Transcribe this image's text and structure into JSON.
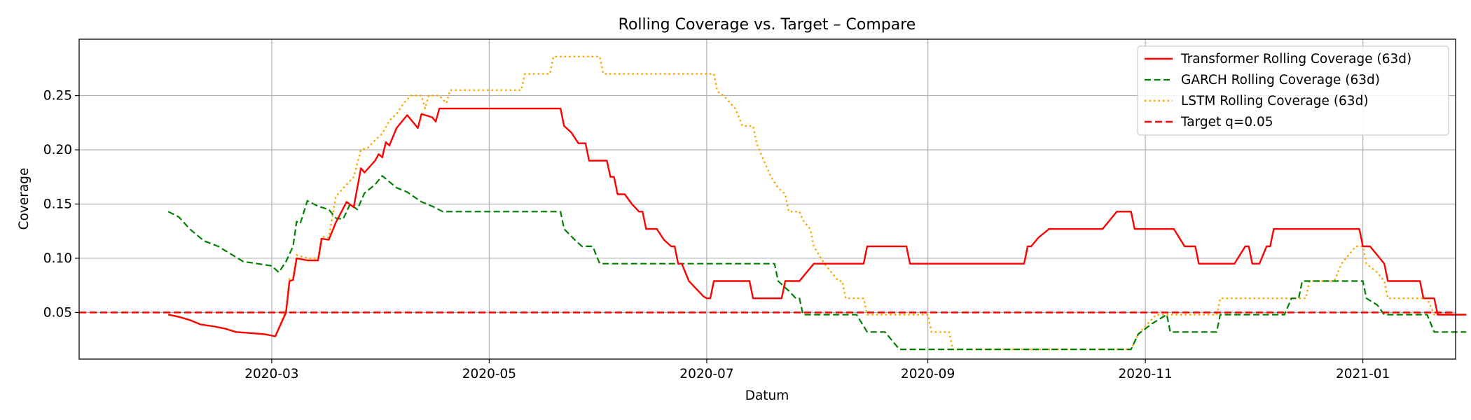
{
  "chart_data": {
    "type": "line",
    "title": "Rolling Coverage vs. Target – Compare",
    "xlabel": "Datum",
    "ylabel": "Coverage",
    "x_axis_type": "date",
    "xlim": [
      "2020-01-07",
      "2021-01-27"
    ],
    "ylim": [
      0.007,
      0.302
    ],
    "grid": true,
    "legend_position": "top-right",
    "x_ticks": [
      {
        "date": "2020-03-01",
        "label": "2020-03"
      },
      {
        "date": "2020-05-01",
        "label": "2020-05"
      },
      {
        "date": "2020-07-01",
        "label": "2020-07"
      },
      {
        "date": "2020-09-01",
        "label": "2020-09"
      },
      {
        "date": "2020-11-01",
        "label": "2020-11"
      },
      {
        "date": "2021-01-01",
        "label": "2021-01"
      }
    ],
    "y_ticks": [
      0.05,
      0.1,
      0.15,
      0.2,
      0.25
    ],
    "y_tick_labels": [
      "0.05",
      "0.10",
      "0.15",
      "0.20",
      "0.25"
    ],
    "series": [
      {
        "name": "Transformer Rolling Coverage (63d)",
        "color": "#ff0000",
        "style": "solid",
        "points": [
          [
            "2020-02-01",
            0.048
          ],
          [
            "2020-02-04",
            0.046
          ],
          [
            "2020-02-07",
            0.043
          ],
          [
            "2020-02-10",
            0.039
          ],
          [
            "2020-02-14",
            0.037
          ],
          [
            "2020-02-17",
            0.035
          ],
          [
            "2020-02-20",
            0.032
          ],
          [
            "2020-02-24",
            0.031
          ],
          [
            "2020-02-28",
            0.03
          ],
          [
            "2020-03-02",
            0.028
          ],
          [
            "2020-03-05",
            0.05
          ],
          [
            "2020-03-06",
            0.079
          ],
          [
            "2020-03-07",
            0.08
          ],
          [
            "2020-03-08",
            0.1
          ],
          [
            "2020-03-11",
            0.098
          ],
          [
            "2020-03-14",
            0.098
          ],
          [
            "2020-03-15",
            0.118
          ],
          [
            "2020-03-17",
            0.117
          ],
          [
            "2020-03-19",
            0.133
          ],
          [
            "2020-03-22",
            0.152
          ],
          [
            "2020-03-24",
            0.147
          ],
          [
            "2020-03-26",
            0.183
          ],
          [
            "2020-03-27",
            0.179
          ],
          [
            "2020-03-30",
            0.19
          ],
          [
            "2020-03-31",
            0.196
          ],
          [
            "2020-04-01",
            0.193
          ],
          [
            "2020-04-02",
            0.207
          ],
          [
            "2020-04-03",
            0.204
          ],
          [
            "2020-04-05",
            0.22
          ],
          [
            "2020-04-08",
            0.232
          ],
          [
            "2020-04-11",
            0.22
          ],
          [
            "2020-04-12",
            0.233
          ],
          [
            "2020-04-15",
            0.23
          ],
          [
            "2020-04-16",
            0.226
          ],
          [
            "2020-04-17",
            0.238
          ],
          [
            "2020-05-20",
            0.238
          ],
          [
            "2020-05-21",
            0.238
          ],
          [
            "2020-05-22",
            0.222
          ],
          [
            "2020-05-24",
            0.216
          ],
          [
            "2020-05-26",
            0.206
          ],
          [
            "2020-05-28",
            0.206
          ],
          [
            "2020-05-29",
            0.19
          ],
          [
            "2020-06-01",
            0.19
          ],
          [
            "2020-06-03",
            0.19
          ],
          [
            "2020-06-04",
            0.175
          ],
          [
            "2020-06-05",
            0.175
          ],
          [
            "2020-06-06",
            0.159
          ],
          [
            "2020-06-08",
            0.159
          ],
          [
            "2020-06-10",
            0.15
          ],
          [
            "2020-06-12",
            0.143
          ],
          [
            "2020-06-13",
            0.143
          ],
          [
            "2020-06-14",
            0.127
          ],
          [
            "2020-06-17",
            0.127
          ],
          [
            "2020-06-19",
            0.117
          ],
          [
            "2020-06-21",
            0.111
          ],
          [
            "2020-06-22",
            0.111
          ],
          [
            "2020-06-23",
            0.095
          ],
          [
            "2020-06-24",
            0.095
          ],
          [
            "2020-06-26",
            0.079
          ],
          [
            "2020-06-28",
            0.072
          ],
          [
            "2020-06-30",
            0.065
          ],
          [
            "2020-07-01",
            0.063
          ],
          [
            "2020-07-02",
            0.063
          ],
          [
            "2020-07-03",
            0.079
          ],
          [
            "2020-07-13",
            0.079
          ],
          [
            "2020-07-14",
            0.063
          ],
          [
            "2020-07-22",
            0.063
          ],
          [
            "2020-07-23",
            0.079
          ],
          [
            "2020-07-27",
            0.079
          ],
          [
            "2020-07-29",
            0.087
          ],
          [
            "2020-07-31",
            0.095
          ],
          [
            "2020-08-14",
            0.095
          ],
          [
            "2020-08-15",
            0.111
          ],
          [
            "2020-08-26",
            0.111
          ],
          [
            "2020-08-27",
            0.095
          ],
          [
            "2020-09-28",
            0.095
          ],
          [
            "2020-09-29",
            0.111
          ],
          [
            "2020-09-30",
            0.111
          ],
          [
            "2020-10-02",
            0.119
          ],
          [
            "2020-10-05",
            0.127
          ],
          [
            "2020-10-20",
            0.127
          ],
          [
            "2020-10-22",
            0.135
          ],
          [
            "2020-10-24",
            0.143
          ],
          [
            "2020-10-28",
            0.143
          ],
          [
            "2020-10-29",
            0.127
          ],
          [
            "2020-11-09",
            0.127
          ],
          [
            "2020-11-12",
            0.111
          ],
          [
            "2020-11-15",
            0.111
          ],
          [
            "2020-11-16",
            0.095
          ],
          [
            "2020-11-26",
            0.095
          ],
          [
            "2020-11-29",
            0.111
          ],
          [
            "2020-11-30",
            0.111
          ],
          [
            "2020-12-01",
            0.095
          ],
          [
            "2020-12-03",
            0.095
          ],
          [
            "2020-12-05",
            0.111
          ],
          [
            "2020-12-06",
            0.111
          ],
          [
            "2020-12-07",
            0.127
          ],
          [
            "2020-12-31",
            0.127
          ],
          [
            "2021-01-01",
            0.111
          ],
          [
            "2021-01-03",
            0.111
          ],
          [
            "2021-01-05",
            0.103
          ],
          [
            "2021-01-07",
            0.095
          ],
          [
            "2021-01-08",
            0.079
          ],
          [
            "2021-01-17",
            0.079
          ],
          [
            "2021-01-18",
            0.063
          ],
          [
            "2021-01-21",
            0.063
          ],
          [
            "2021-01-22",
            0.048
          ],
          [
            "2021-01-30",
            0.048
          ]
        ]
      },
      {
        "name": "GARCH Rolling Coverage (63d)",
        "color": "#008000",
        "style": "dashed",
        "points": [
          [
            "2020-02-01",
            0.143
          ],
          [
            "2020-02-04",
            0.138
          ],
          [
            "2020-02-07",
            0.127
          ],
          [
            "2020-02-11",
            0.116
          ],
          [
            "2020-02-15",
            0.111
          ],
          [
            "2020-02-19",
            0.103
          ],
          [
            "2020-02-22",
            0.097
          ],
          [
            "2020-02-26",
            0.095
          ],
          [
            "2020-03-01",
            0.093
          ],
          [
            "2020-03-03",
            0.087
          ],
          [
            "2020-03-05",
            0.097
          ],
          [
            "2020-03-07",
            0.111
          ],
          [
            "2020-03-08",
            0.134
          ],
          [
            "2020-03-09",
            0.132
          ],
          [
            "2020-03-11",
            0.153
          ],
          [
            "2020-03-14",
            0.148
          ],
          [
            "2020-03-17",
            0.145
          ],
          [
            "2020-03-19",
            0.137
          ],
          [
            "2020-03-21",
            0.136
          ],
          [
            "2020-03-23",
            0.15
          ],
          [
            "2020-03-25",
            0.145
          ],
          [
            "2020-03-27",
            0.16
          ],
          [
            "2020-03-30",
            0.168
          ],
          [
            "2020-04-01",
            0.176
          ],
          [
            "2020-04-05",
            0.165
          ],
          [
            "2020-04-08",
            0.161
          ],
          [
            "2020-04-12",
            0.152
          ],
          [
            "2020-04-15",
            0.148
          ],
          [
            "2020-04-18",
            0.143
          ],
          [
            "2020-05-21",
            0.143
          ],
          [
            "2020-05-22",
            0.127
          ],
          [
            "2020-05-25",
            0.117
          ],
          [
            "2020-05-27",
            0.111
          ],
          [
            "2020-05-30",
            0.111
          ],
          [
            "2020-06-01",
            0.095
          ],
          [
            "2020-07-20",
            0.095
          ],
          [
            "2020-07-21",
            0.079
          ],
          [
            "2020-07-24",
            0.07
          ],
          [
            "2020-07-26",
            0.063
          ],
          [
            "2020-07-27",
            0.063
          ],
          [
            "2020-07-28",
            0.048
          ],
          [
            "2020-08-11",
            0.048
          ],
          [
            "2020-08-12",
            0.048
          ],
          [
            "2020-08-15",
            0.032
          ],
          [
            "2020-08-20",
            0.032
          ],
          [
            "2020-08-24",
            0.016
          ],
          [
            "2020-10-28",
            0.016
          ],
          [
            "2020-10-30",
            0.03
          ],
          [
            "2020-11-03",
            0.04
          ],
          [
            "2020-11-07",
            0.048
          ],
          [
            "2020-11-08",
            0.032
          ],
          [
            "2020-11-21",
            0.032
          ],
          [
            "2020-11-22",
            0.048
          ],
          [
            "2020-12-10",
            0.048
          ],
          [
            "2020-12-12",
            0.063
          ],
          [
            "2020-12-14",
            0.063
          ],
          [
            "2020-12-15",
            0.079
          ],
          [
            "2021-01-01",
            0.079
          ],
          [
            "2021-01-02",
            0.063
          ],
          [
            "2021-01-05",
            0.057
          ],
          [
            "2021-01-07",
            0.048
          ],
          [
            "2021-01-19",
            0.048
          ],
          [
            "2021-01-21",
            0.032
          ],
          [
            "2021-01-30",
            0.032
          ]
        ]
      },
      {
        "name": "LSTM Rolling Coverage (63d)",
        "color": "#ffa500",
        "style": "dotted",
        "points": [
          [
            "2020-02-01",
            0.048
          ],
          [
            "2020-02-04",
            0.046
          ],
          [
            "2020-02-07",
            0.043
          ],
          [
            "2020-02-10",
            0.039
          ],
          [
            "2020-02-14",
            0.037
          ],
          [
            "2020-02-17",
            0.035
          ],
          [
            "2020-02-20",
            0.032
          ],
          [
            "2020-02-24",
            0.031
          ],
          [
            "2020-02-28",
            0.03
          ],
          [
            "2020-03-02",
            0.028
          ],
          [
            "2020-03-05",
            0.052
          ],
          [
            "2020-03-06",
            0.081
          ],
          [
            "2020-03-07",
            0.082
          ],
          [
            "2020-03-08",
            0.103
          ],
          [
            "2020-03-11",
            0.1
          ],
          [
            "2020-03-14",
            0.1
          ],
          [
            "2020-03-15",
            0.12
          ],
          [
            "2020-03-17",
            0.119
          ],
          [
            "2020-03-19",
            0.157
          ],
          [
            "2020-03-22",
            0.168
          ],
          [
            "2020-03-24",
            0.175
          ],
          [
            "2020-03-26",
            0.2
          ],
          [
            "2020-03-28",
            0.202
          ],
          [
            "2020-03-30",
            0.209
          ],
          [
            "2020-04-01",
            0.215
          ],
          [
            "2020-04-03",
            0.227
          ],
          [
            "2020-04-05",
            0.233
          ],
          [
            "2020-04-07",
            0.243
          ],
          [
            "2020-04-09",
            0.25
          ],
          [
            "2020-04-12",
            0.25
          ],
          [
            "2020-04-13",
            0.238
          ],
          [
            "2020-04-14",
            0.25
          ],
          [
            "2020-04-17",
            0.25
          ],
          [
            "2020-04-19",
            0.243
          ],
          [
            "2020-04-20",
            0.255
          ],
          [
            "2020-05-10",
            0.255
          ],
          [
            "2020-05-11",
            0.27
          ],
          [
            "2020-05-18",
            0.27
          ],
          [
            "2020-05-19",
            0.286
          ],
          [
            "2020-06-01",
            0.286
          ],
          [
            "2020-06-02",
            0.27
          ],
          [
            "2020-07-03",
            0.27
          ],
          [
            "2020-07-04",
            0.254
          ],
          [
            "2020-07-06",
            0.249
          ],
          [
            "2020-07-09",
            0.238
          ],
          [
            "2020-07-11",
            0.222
          ],
          [
            "2020-07-14",
            0.222
          ],
          [
            "2020-07-15",
            0.206
          ],
          [
            "2020-07-17",
            0.19
          ],
          [
            "2020-07-19",
            0.175
          ],
          [
            "2020-07-21",
            0.165
          ],
          [
            "2020-07-23",
            0.159
          ],
          [
            "2020-07-24",
            0.143
          ],
          [
            "2020-07-27",
            0.143
          ],
          [
            "2020-07-28",
            0.135
          ],
          [
            "2020-07-30",
            0.127
          ],
          [
            "2020-07-31",
            0.111
          ],
          [
            "2020-08-02",
            0.1
          ],
          [
            "2020-08-03",
            0.095
          ],
          [
            "2020-08-05",
            0.087
          ],
          [
            "2020-08-07",
            0.079
          ],
          [
            "2020-08-08",
            0.079
          ],
          [
            "2020-08-09",
            0.063
          ],
          [
            "2020-08-14",
            0.063
          ],
          [
            "2020-08-15",
            0.048
          ],
          [
            "2020-09-01",
            0.048
          ],
          [
            "2020-09-02",
            0.032
          ],
          [
            "2020-09-07",
            0.032
          ],
          [
            "2020-09-08",
            0.016
          ],
          [
            "2020-10-28",
            0.016
          ],
          [
            "2020-10-30",
            0.03
          ],
          [
            "2020-11-04",
            0.048
          ],
          [
            "2020-11-21",
            0.048
          ],
          [
            "2020-11-22",
            0.063
          ],
          [
            "2020-12-16",
            0.063
          ],
          [
            "2020-12-17",
            0.079
          ],
          [
            "2020-12-24",
            0.079
          ],
          [
            "2020-12-26",
            0.095
          ],
          [
            "2020-12-30",
            0.111
          ],
          [
            "2021-01-01",
            0.111
          ],
          [
            "2021-01-02",
            0.095
          ],
          [
            "2021-01-05",
            0.087
          ],
          [
            "2021-01-07",
            0.079
          ],
          [
            "2021-01-08",
            0.063
          ],
          [
            "2021-01-19",
            0.063
          ],
          [
            "2021-01-21",
            0.048
          ],
          [
            "2021-01-30",
            0.048
          ]
        ]
      },
      {
        "name": "Target q=0.05",
        "color": "#ff0000",
        "style": "dashed-heavy",
        "hline": 0.05
      }
    ]
  }
}
